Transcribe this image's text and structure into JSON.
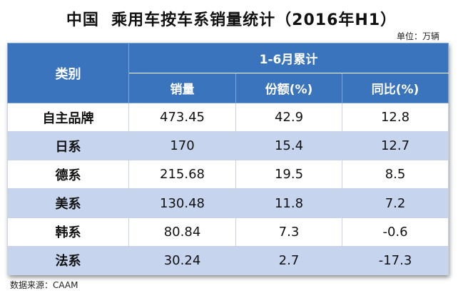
{
  "title": "中国  乘用车按车系销量统计（2016年H1）",
  "unit_note": "单位：万辆",
  "table": {
    "category_header": "类别",
    "group_header": "1-6月累计",
    "columns": [
      "销量",
      "份额(%)",
      "同比(%)"
    ],
    "rows": [
      {
        "category": "自主品牌",
        "sales": "473.45",
        "share": "42.9",
        "yoy": "12.8"
      },
      {
        "category": "日系",
        "sales": "170",
        "share": "15.4",
        "yoy": "12.7"
      },
      {
        "category": "德系",
        "sales": "215.68",
        "share": "19.5",
        "yoy": "8.5"
      },
      {
        "category": "美系",
        "sales": "130.48",
        "share": "11.8",
        "yoy": "7.2"
      },
      {
        "category": "韩系",
        "sales": "80.84",
        "share": "7.3",
        "yoy": "-0.6"
      },
      {
        "category": "法系",
        "sales": "30.24",
        "share": "2.7",
        "yoy": "-17.3"
      }
    ]
  },
  "source": "数据来源：CAAM",
  "colors": {
    "header_bg": "#3a74bd",
    "row_alt_bg": "#c6d4ee"
  }
}
